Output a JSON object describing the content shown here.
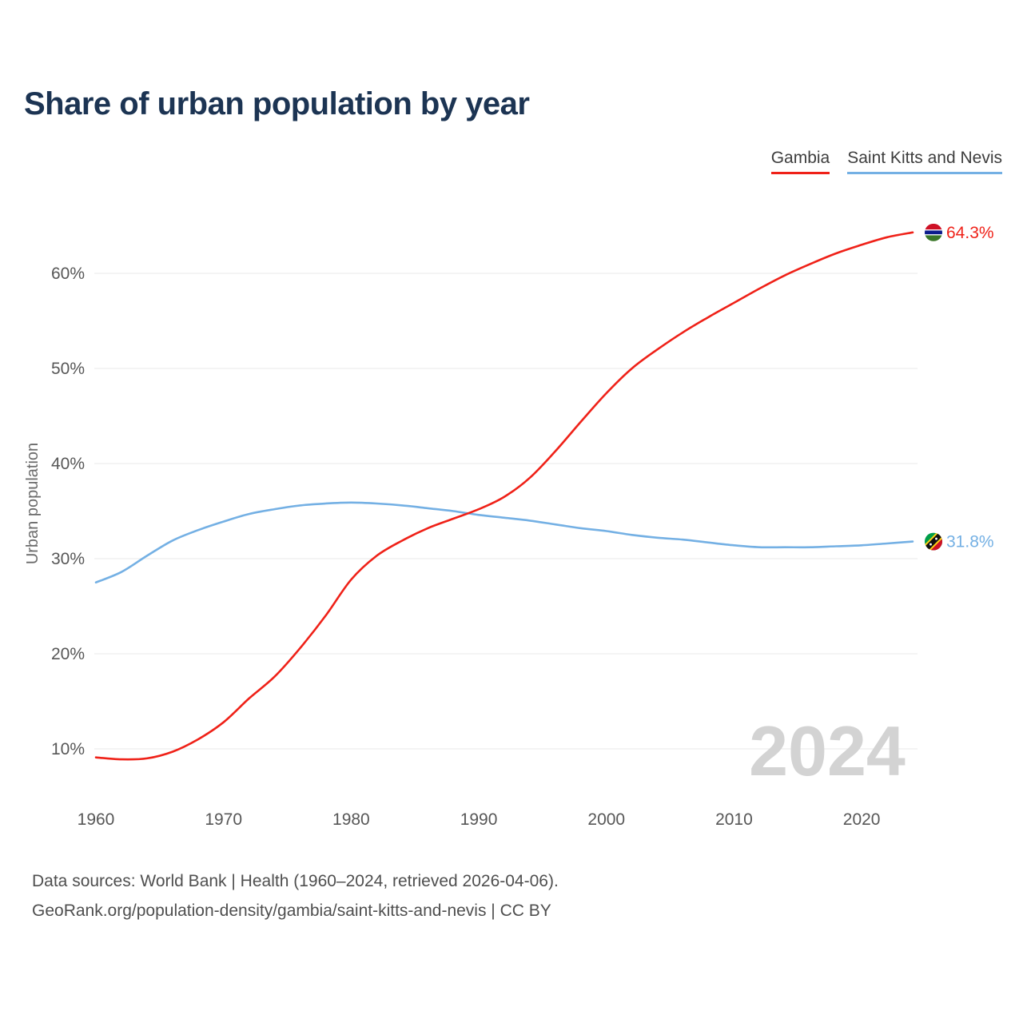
{
  "title": "Share of urban population by year",
  "watermark": "2024",
  "legend": [
    {
      "label": "Gambia",
      "color": "#ef2118"
    },
    {
      "label": "Saint Kitts and Nevis",
      "color": "#74b0e4"
    }
  ],
  "y_axis": {
    "label": "Urban population"
  },
  "end_labels": [
    {
      "series": "Gambia",
      "value": "64.3%",
      "icon": "gambia-flag-icon"
    },
    {
      "series": "Saint Kitts and Nevis",
      "value": "31.8%",
      "icon": "saint-kitts-flag-icon"
    }
  ],
  "footer": {
    "line1": "Data sources: World Bank | Health (1960–2024, retrieved 2026-04-06).",
    "line2": "GeoRank.org/population-density/gambia/saint-kitts-and-nevis | CC BY"
  },
  "chart_data": {
    "type": "line",
    "title": "Share of urban population by year",
    "xlabel": "",
    "ylabel": "Urban population",
    "xlim": [
      1960,
      2024
    ],
    "ylim": [
      6,
      67
    ],
    "xticks": [
      1960,
      1970,
      1980,
      1990,
      2000,
      2010,
      2020
    ],
    "yticks": [
      10,
      20,
      30,
      40,
      50,
      60
    ],
    "grid": "horizontal",
    "legend_position": "top-right",
    "x": [
      1960,
      1962,
      1964,
      1966,
      1968,
      1970,
      1972,
      1974,
      1976,
      1978,
      1980,
      1982,
      1984,
      1986,
      1988,
      1990,
      1992,
      1994,
      1996,
      1998,
      2000,
      2002,
      2004,
      2006,
      2008,
      2010,
      2012,
      2014,
      2016,
      2018,
      2020,
      2022,
      2024
    ],
    "series": [
      {
        "name": "Gambia",
        "color": "#ef2118",
        "values": [
          9.1,
          8.9,
          9.0,
          9.7,
          11.0,
          12.8,
          15.3,
          17.6,
          20.6,
          24.0,
          27.8,
          30.3,
          31.9,
          33.2,
          34.2,
          35.2,
          36.5,
          38.5,
          41.3,
          44.4,
          47.4,
          50.0,
          52.0,
          53.8,
          55.4,
          56.9,
          58.4,
          59.8,
          61.0,
          62.1,
          63.0,
          63.8,
          64.3
        ]
      },
      {
        "name": "Saint Kitts and Nevis",
        "color": "#74b0e4",
        "values": [
          27.5,
          28.6,
          30.3,
          31.9,
          33.0,
          33.9,
          34.7,
          35.2,
          35.6,
          35.8,
          35.9,
          35.8,
          35.6,
          35.3,
          35.0,
          34.6,
          34.3,
          34.0,
          33.6,
          33.2,
          32.9,
          32.5,
          32.2,
          32.0,
          31.7,
          31.4,
          31.2,
          31.2,
          31.2,
          31.3,
          31.4,
          31.6,
          31.8
        ]
      }
    ]
  }
}
